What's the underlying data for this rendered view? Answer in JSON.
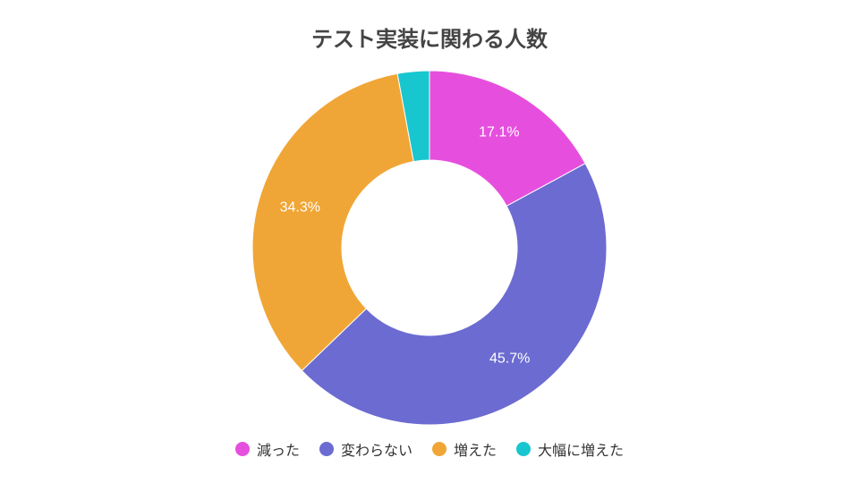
{
  "chart_data": {
    "type": "pie",
    "title": "テスト実装に関わる人数",
    "categories": [
      "減った",
      "変わらない",
      "増えた",
      "大幅に増えた"
    ],
    "values": [
      17.1,
      45.7,
      34.3,
      2.9
    ],
    "labels": [
      "17.1%",
      "45.7%",
      "34.3%",
      ""
    ],
    "colors": [
      "#e64fdd",
      "#6b6bd1",
      "#f0a636",
      "#18c6cf"
    ],
    "legend_position": "bottom",
    "donut": true
  }
}
